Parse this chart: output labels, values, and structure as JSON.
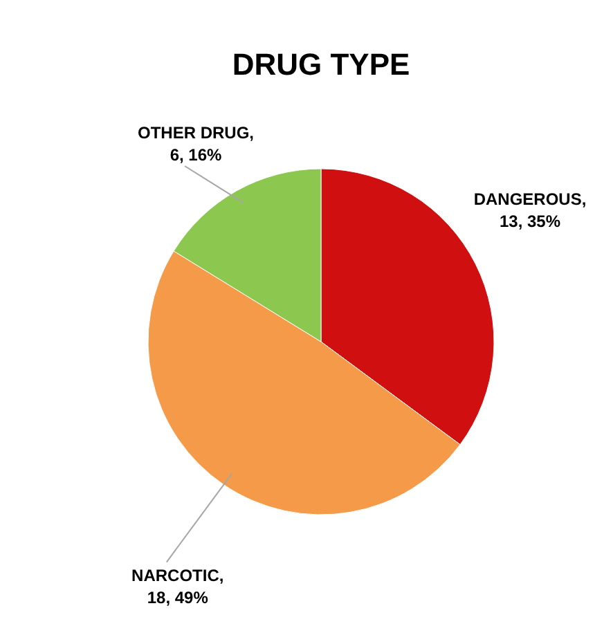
{
  "chart_data": {
    "type": "pie",
    "title": "DRUG TYPE",
    "categories": [
      "DANGEROUS",
      "NARCOTIC",
      "OTHER DRUG"
    ],
    "values": [
      13,
      18,
      6
    ],
    "value_labels": [
      ", 13, 35%",
      ", 18, 49%",
      ", 6, 16%"
    ],
    "colors": [
      "#d01010",
      "#f59a48",
      "#8cc850"
    ],
    "legend": false
  }
}
